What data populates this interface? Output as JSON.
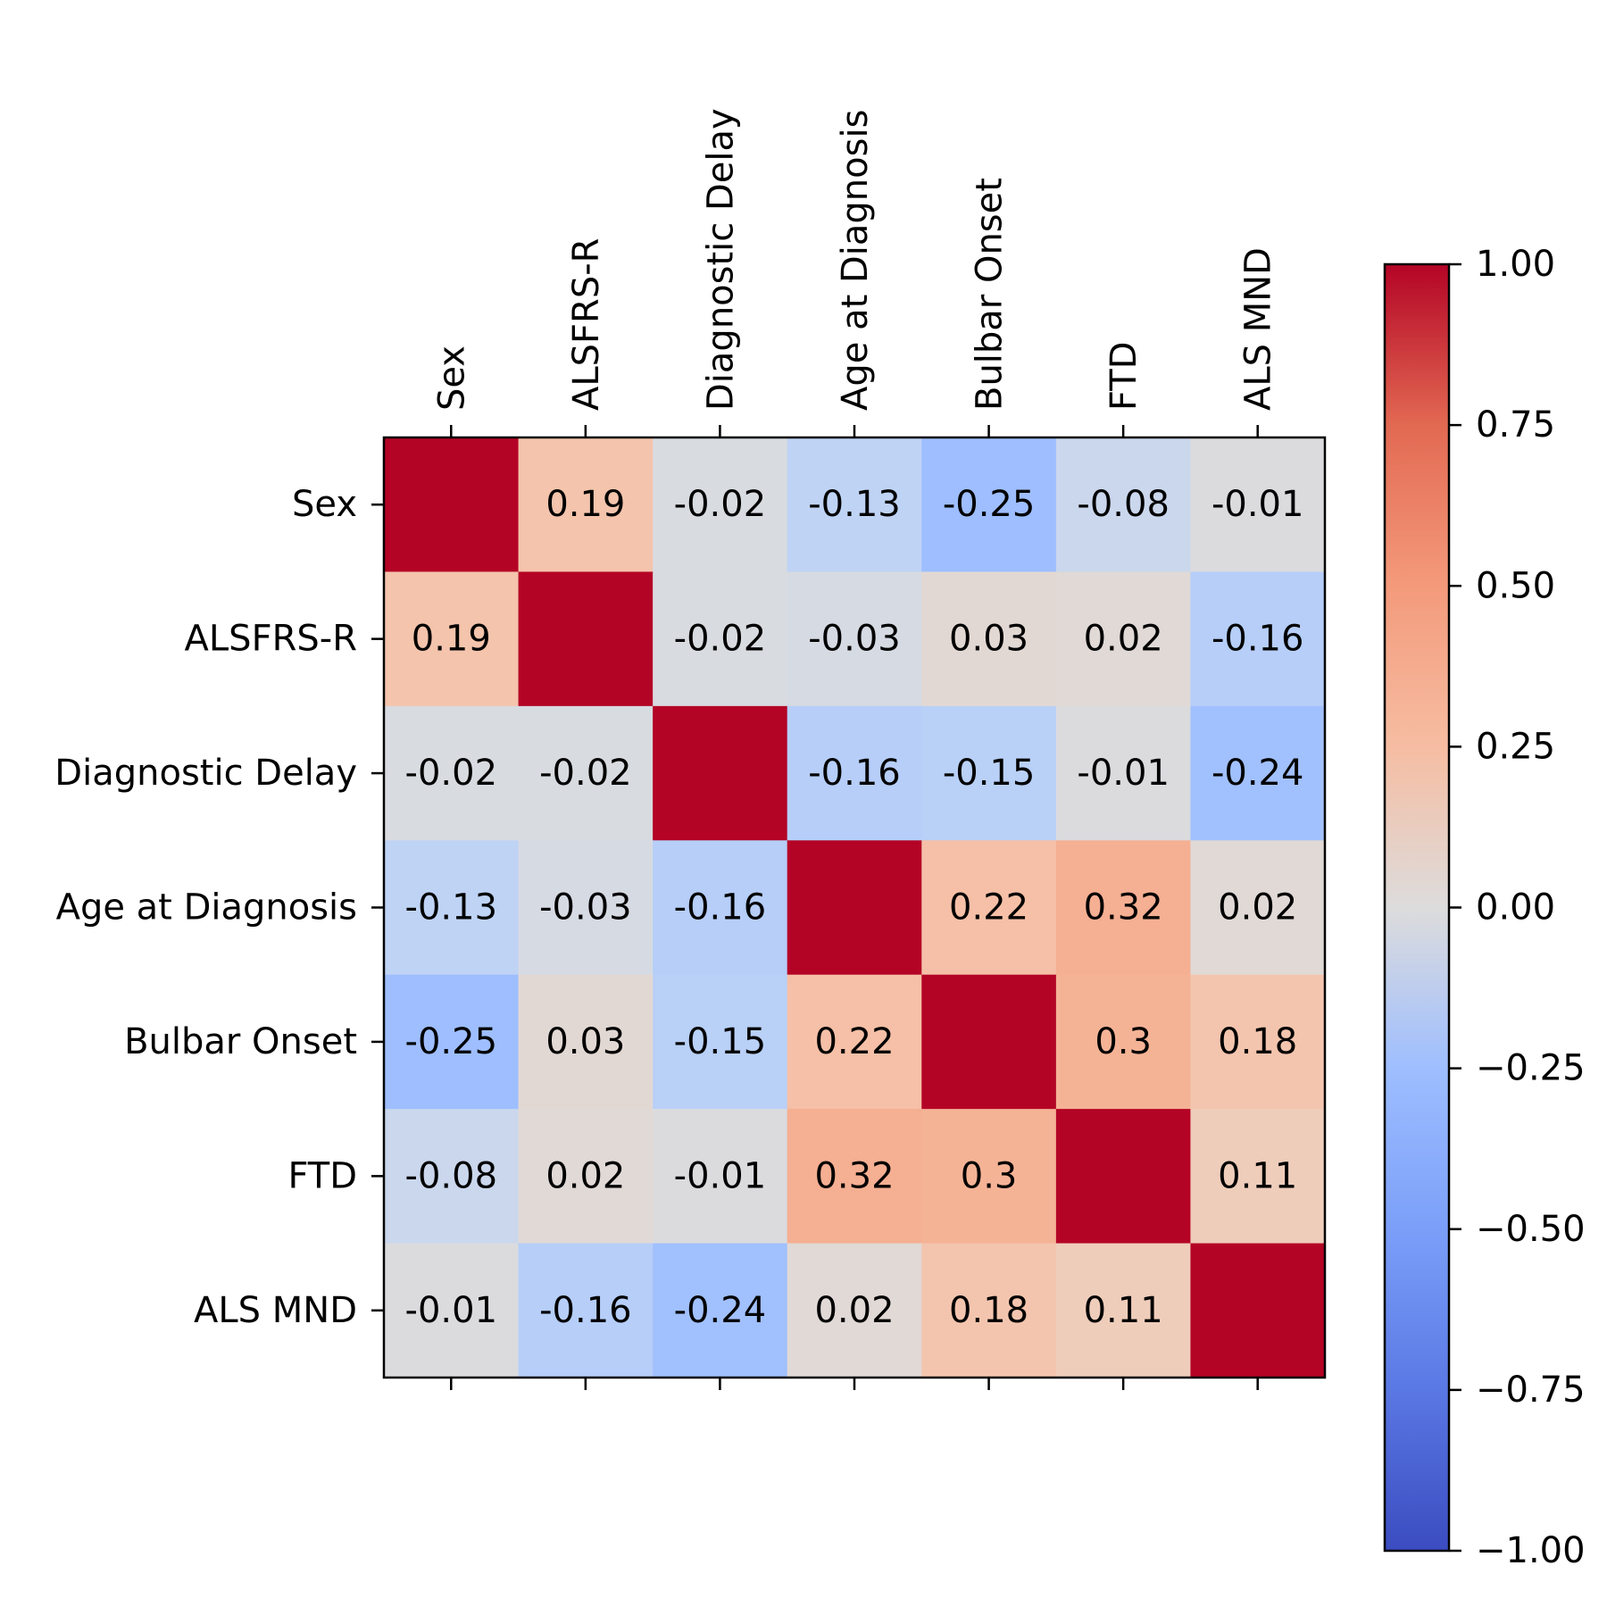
{
  "chart_data": {
    "type": "heatmap",
    "title": "",
    "variables": [
      "Sex",
      "ALSFRS-R",
      "Diagnostic Delay",
      "Age at Diagnosis",
      "Bulbar Onset",
      "FTD",
      "ALS MND"
    ],
    "matrix": [
      [
        1.0,
        0.19,
        -0.02,
        -0.13,
        -0.25,
        -0.08,
        -0.01
      ],
      [
        0.19,
        1.0,
        -0.02,
        -0.03,
        0.03,
        0.02,
        -0.16
      ],
      [
        -0.02,
        -0.02,
        1.0,
        -0.16,
        -0.15,
        -0.01,
        -0.24
      ],
      [
        -0.13,
        -0.03,
        -0.16,
        1.0,
        0.22,
        0.32,
        0.02
      ],
      [
        -0.25,
        0.03,
        -0.15,
        0.22,
        1.0,
        0.3,
        0.18
      ],
      [
        -0.08,
        0.02,
        -0.01,
        0.32,
        0.3,
        1.0,
        0.11
      ],
      [
        -0.01,
        -0.16,
        -0.24,
        0.02,
        0.18,
        0.11,
        1.0
      ]
    ],
    "cell_labels": [
      [
        "",
        "0.19",
        "-0.02",
        "-0.13",
        "-0.25",
        "-0.08",
        "-0.01"
      ],
      [
        "0.19",
        "",
        "-0.02",
        "-0.03",
        "0.03",
        "0.02",
        "-0.16"
      ],
      [
        "-0.02",
        "-0.02",
        "",
        "-0.16",
        "-0.15",
        "-0.01",
        "-0.24"
      ],
      [
        "-0.13",
        "-0.03",
        "-0.16",
        "",
        "0.22",
        "0.32",
        "0.02"
      ],
      [
        "-0.25",
        "0.03",
        "-0.15",
        "0.22",
        "",
        "0.3",
        "0.18"
      ],
      [
        "-0.08",
        "0.02",
        "-0.01",
        "0.32",
        "0.3",
        "",
        "0.11"
      ],
      [
        "-0.01",
        "-0.16",
        "-0.24",
        "0.02",
        "0.18",
        "0.11",
        ""
      ]
    ],
    "x_axis_position": "top",
    "colormap": "coolwarm",
    "colorbar": {
      "range": [
        -1.0,
        1.0
      ],
      "ticks": [
        1.0,
        0.75,
        0.5,
        0.25,
        0.0,
        -0.25,
        -0.5,
        -0.75,
        -1.0
      ],
      "tick_labels": [
        "1.00",
        "0.75",
        "0.50",
        "0.25",
        "0.00",
        "−0.25",
        "−0.50",
        "−0.75",
        "−1.00"
      ],
      "placement": "right"
    },
    "colors": {
      "low": "#3b4cc0",
      "mid": "#dddcdc",
      "high": "#b40426"
    }
  }
}
